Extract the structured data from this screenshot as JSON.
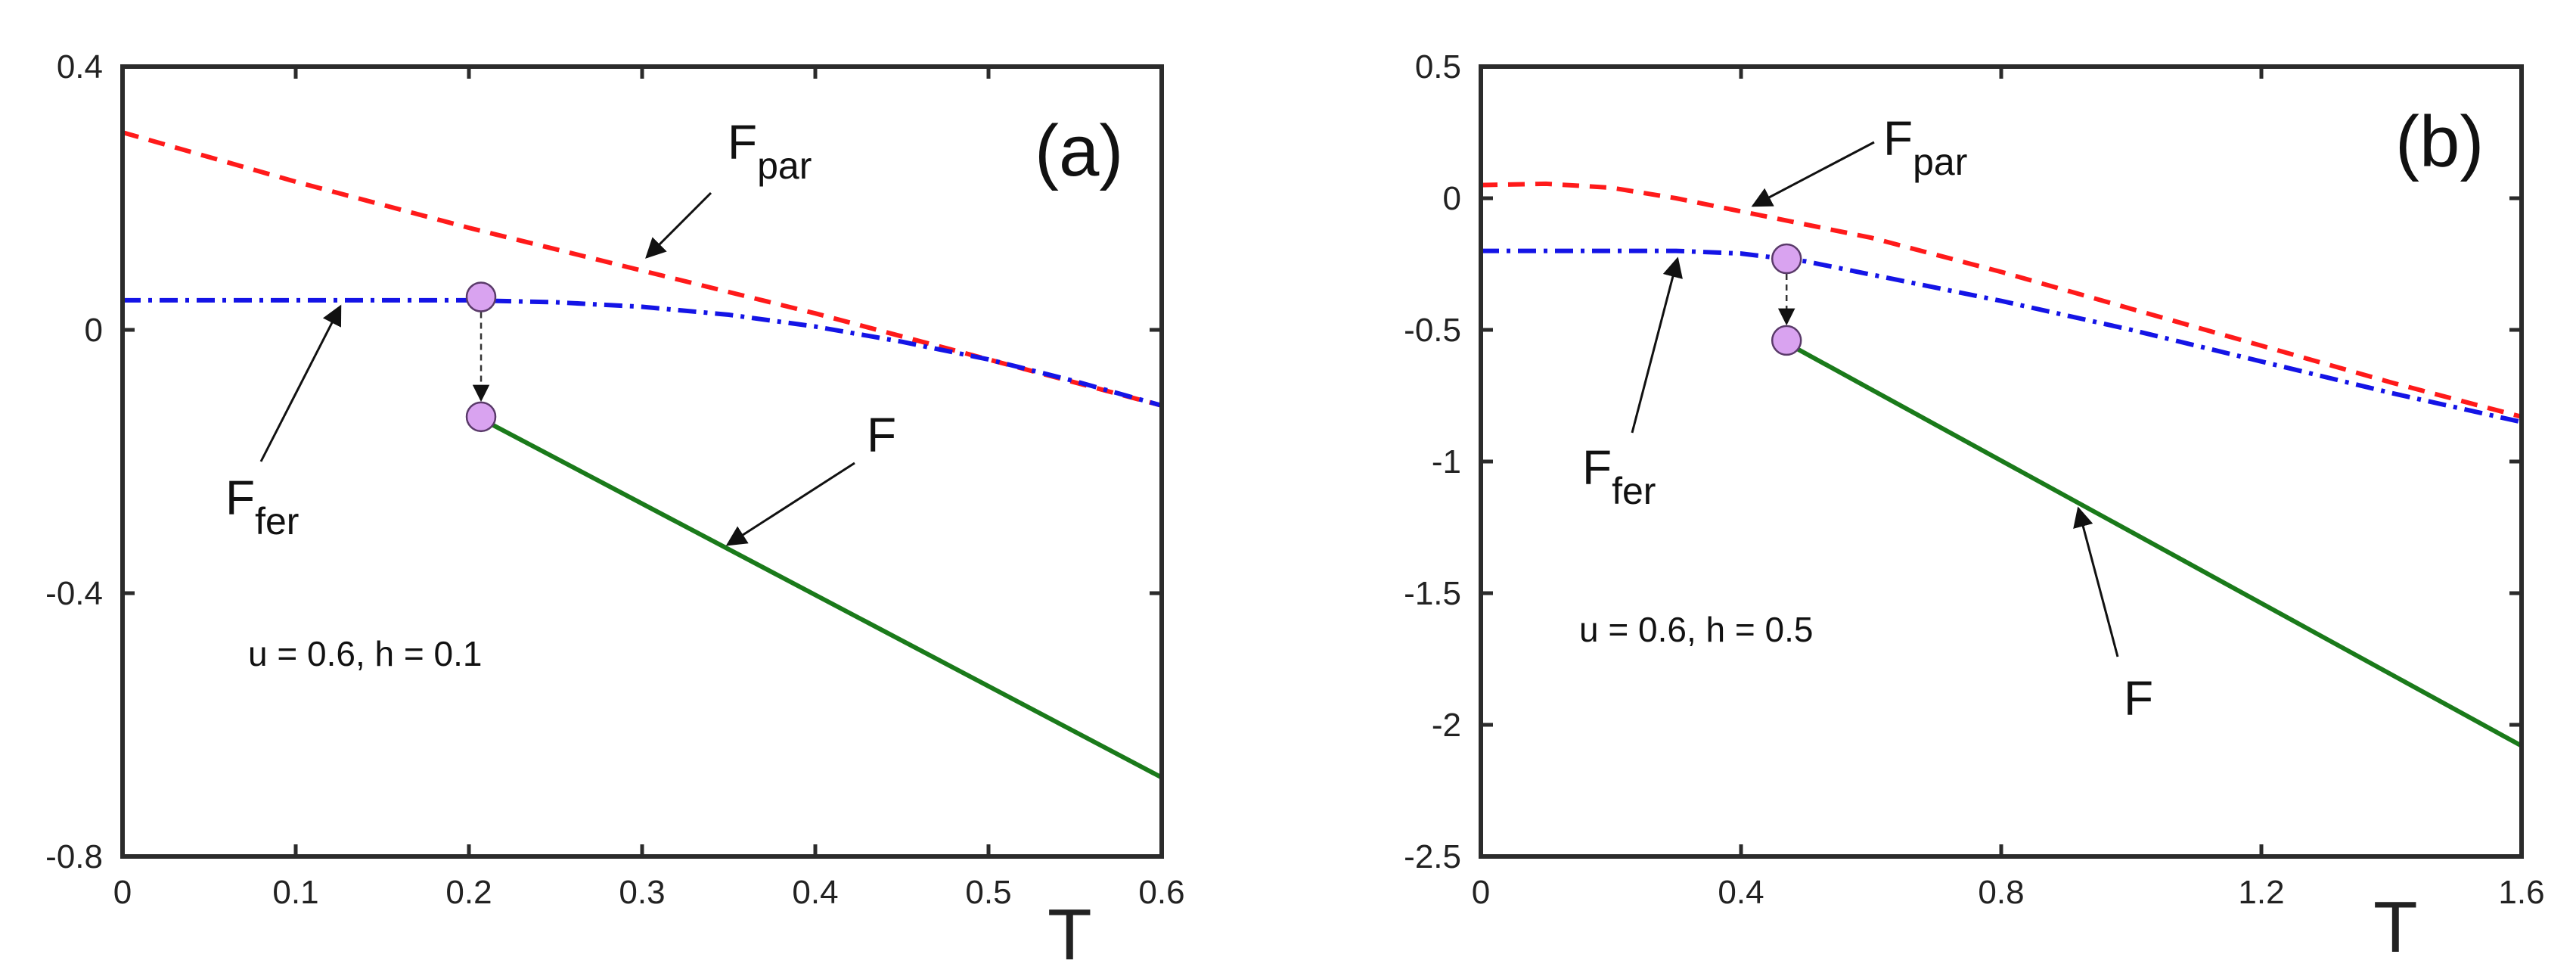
{
  "colors": {
    "F_par": "#ff1a1a",
    "F_fer": "#1414e6",
    "F": "#1a7a1a",
    "marker": "#d9a3f0"
  },
  "chart_data": [
    {
      "type": "line",
      "panel_label": "(a)",
      "xlabel": "T",
      "ylabel": "",
      "xlim": [
        0,
        0.6
      ],
      "ylim": [
        -0.8,
        0.4
      ],
      "xticks": [
        "0",
        "0.1",
        "0.2",
        "0.3",
        "0.4",
        "0.5",
        "0.6"
      ],
      "xtick_values": [
        0,
        0.1,
        0.2,
        0.3,
        0.4,
        0.5,
        0.6
      ],
      "yticks": [
        "0.4",
        "0",
        "-0.4",
        "-0.8"
      ],
      "ytick_values": [
        0.4,
        0,
        -0.4,
        -0.8
      ],
      "params_text": "u = 0.6, h = 0.1",
      "series": [
        {
          "name": "F_par",
          "style": "dashed",
          "x": [
            0,
            0.1,
            0.2,
            0.3,
            0.4,
            0.5,
            0.6
          ],
          "y": [
            0.3,
            0.225,
            0.155,
            0.09,
            0.025,
            -0.045,
            -0.115
          ]
        },
        {
          "name": "F_fer",
          "style": "dashdot",
          "x": [
            0,
            0.1,
            0.2,
            0.25,
            0.3,
            0.35,
            0.4,
            0.45,
            0.5,
            0.55,
            0.6
          ],
          "y": [
            0.045,
            0.045,
            0.045,
            0.042,
            0.035,
            0.023,
            0.005,
            -0.018,
            -0.045,
            -0.078,
            -0.115
          ]
        },
        {
          "name": "F",
          "style": "solid",
          "x": [
            0.207,
            0.6
          ],
          "y": [
            -0.135,
            -0.68
          ]
        }
      ],
      "transition": {
        "x": 0.207,
        "y_from": 0.05,
        "y_to": -0.132
      },
      "annotations": [
        {
          "main": "F",
          "sub": "par"
        },
        {
          "main": "F",
          "sub": "fer"
        },
        {
          "main": "F",
          "sub": ""
        }
      ]
    },
    {
      "type": "line",
      "panel_label": "(b)",
      "xlabel": "T",
      "ylabel": "",
      "xlim": [
        0,
        1.6
      ],
      "ylim": [
        -2.5,
        0.5
      ],
      "xticks": [
        "0",
        "0.4",
        "0.8",
        "1.2",
        "1.6"
      ],
      "xtick_values": [
        0,
        0.4,
        0.8,
        1.2,
        1.6
      ],
      "yticks": [
        "0.5",
        "0",
        "-0.5",
        "-1",
        "-1.5",
        "-2",
        "-2.5"
      ],
      "ytick_values": [
        0.5,
        0,
        -0.5,
        -1,
        -1.5,
        -2,
        -2.5
      ],
      "params_text": "u = 0.6, h = 0.5",
      "series": [
        {
          "name": "F_par",
          "style": "dashed",
          "x": [
            0,
            0.1,
            0.2,
            0.3,
            0.4,
            0.6,
            0.8,
            1.0,
            1.2,
            1.4,
            1.6
          ],
          "y": [
            0.05,
            0.055,
            0.04,
            0.0,
            -0.05,
            -0.15,
            -0.28,
            -0.42,
            -0.56,
            -0.7,
            -0.83
          ]
        },
        {
          "name": "F_fer",
          "style": "dashdot",
          "x": [
            0,
            0.2,
            0.3,
            0.4,
            0.5,
            0.6,
            0.8,
            1.0,
            1.2,
            1.4,
            1.6
          ],
          "y": [
            -0.2,
            -0.2,
            -0.2,
            -0.21,
            -0.24,
            -0.29,
            -0.39,
            -0.5,
            -0.62,
            -0.74,
            -0.85
          ]
        },
        {
          "name": "F",
          "style": "solid",
          "x": [
            0.47,
            1.6
          ],
          "y": [
            -0.55,
            -2.08
          ]
        }
      ],
      "transition": {
        "x": 0.47,
        "y_from": -0.23,
        "y_to": -0.54
      },
      "annotations": [
        {
          "main": "F",
          "sub": "par"
        },
        {
          "main": "F",
          "sub": "fer"
        },
        {
          "main": "F",
          "sub": ""
        }
      ]
    }
  ]
}
